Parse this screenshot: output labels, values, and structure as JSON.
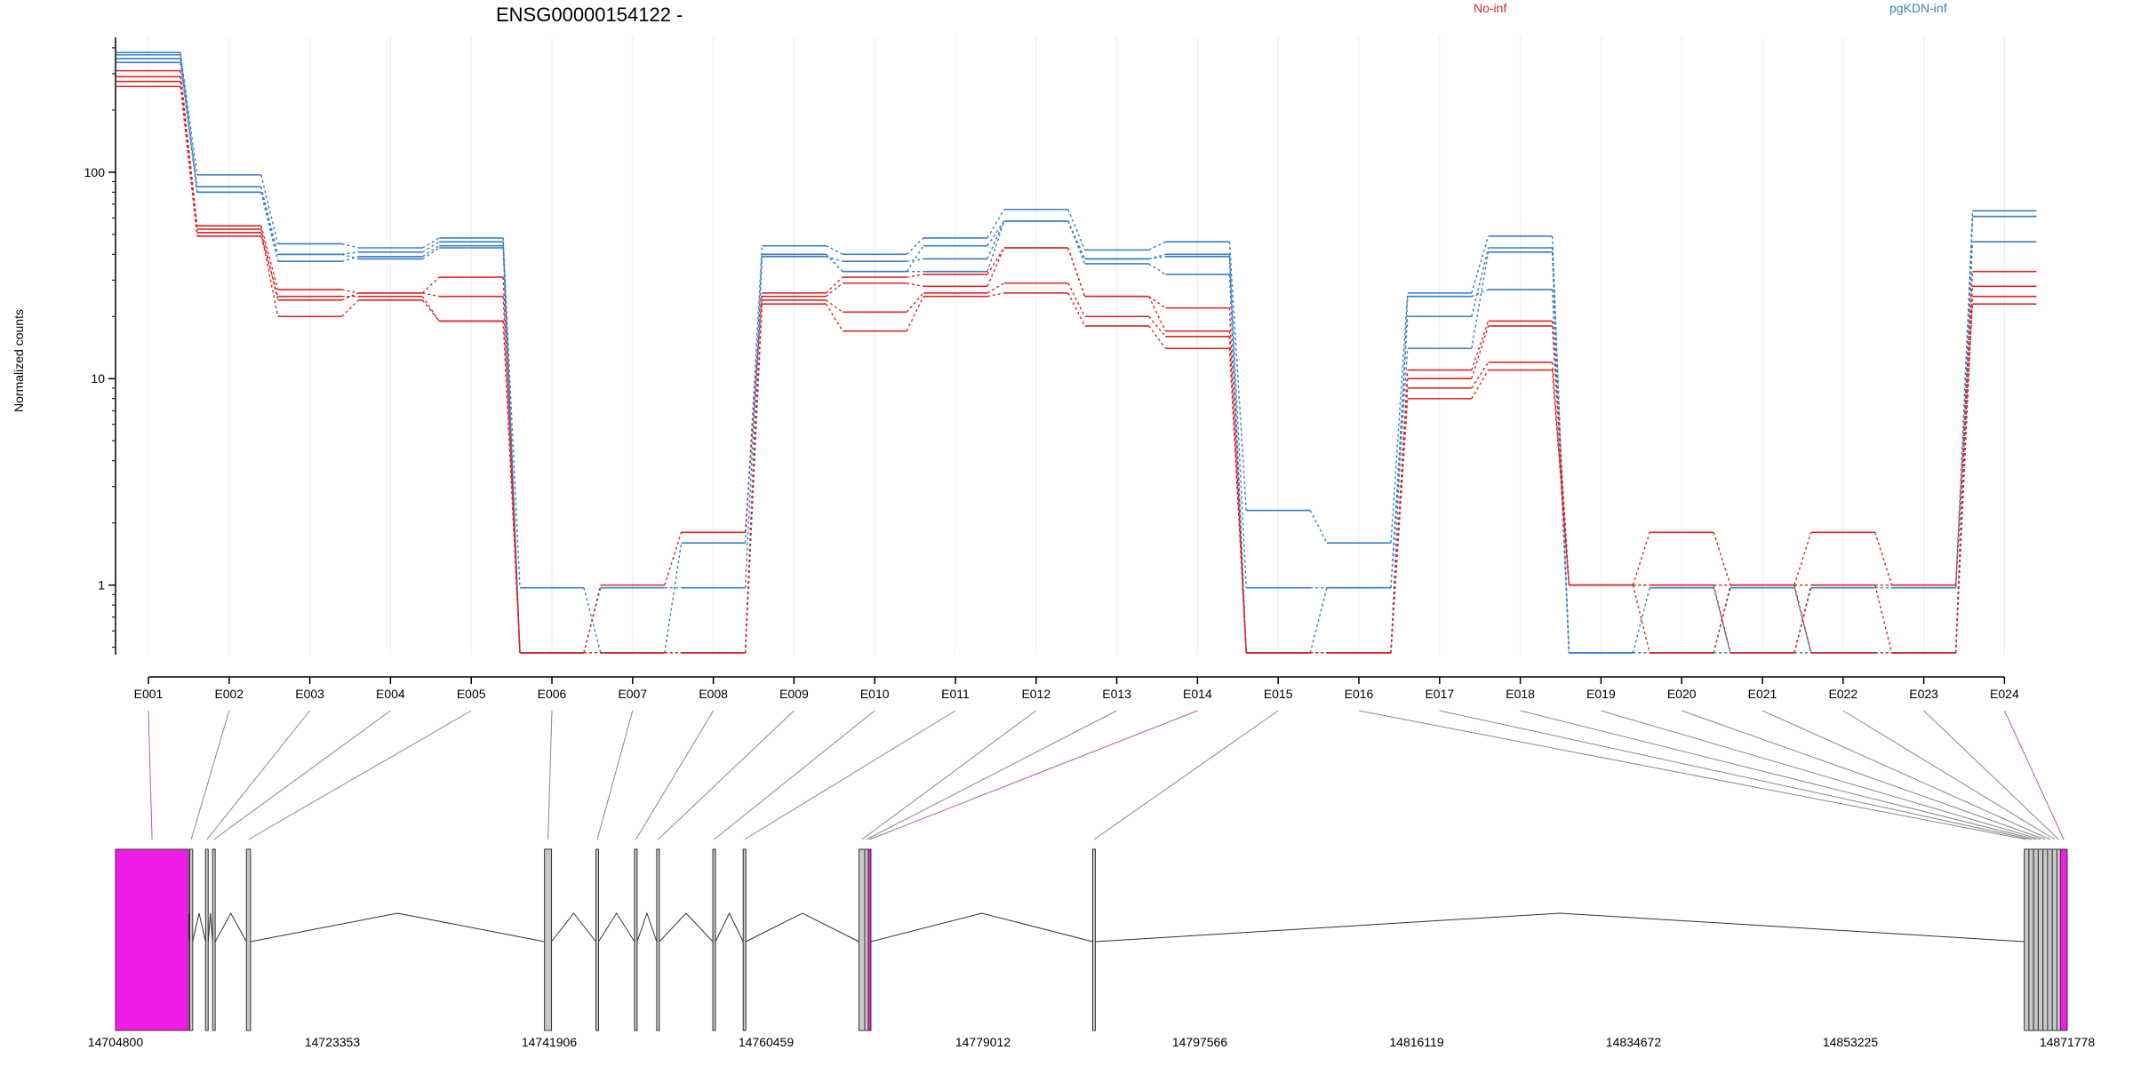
{
  "chart_data": {
    "type": "line",
    "title": "ENSG00000154122 -",
    "ylabel": "Normalized counts",
    "yscale": "log",
    "ylim": [
      0.46,
      450
    ],
    "yticks": [
      1,
      10,
      100
    ],
    "ytick_labels": [
      "1",
      "10",
      "100"
    ],
    "grid": "vertical per exon",
    "legend_position": "top-right",
    "categories": [
      "E001",
      "E002",
      "E003",
      "E004",
      "E005",
      "E006",
      "E007",
      "E008",
      "E009",
      "E010",
      "E011",
      "E012",
      "E013",
      "E014",
      "E015",
      "E016",
      "E017",
      "E018",
      "E019",
      "E020",
      "E021",
      "E022",
      "E023",
      "E024"
    ],
    "series": [
      {
        "name": "pgKDN-inf",
        "color": "#3a7fc4",
        "sample": 1,
        "values": [
          380,
          97,
          45,
          43,
          48,
          0.47,
          0.47,
          1.6,
          44,
          40,
          48,
          66,
          42,
          46,
          2.3,
          1.6,
          26,
          49,
          0.47,
          0.47,
          0.47,
          0.47,
          0.47,
          65
        ]
      },
      {
        "name": "pgKDN-inf",
        "color": "#3a7fc4",
        "sample": 2,
        "values": [
          370,
          85,
          40,
          41,
          46,
          0.97,
          0.47,
          0.47,
          40,
          33,
          44,
          58,
          38,
          39,
          0.97,
          0.97,
          20,
          43,
          0.47,
          0.97,
          0.47,
          0.97,
          0.97,
          61
        ]
      },
      {
        "name": "pgKDN-inf",
        "color": "#3a7fc4",
        "sample": 3,
        "values": [
          355,
          80,
          37,
          39,
          44,
          0.47,
          0.97,
          0.97,
          39,
          37,
          38,
          58,
          36,
          32,
          0.47,
          0.97,
          14,
          41,
          0.47,
          0.47,
          0.97,
          0.47,
          0.47,
          46
        ]
      },
      {
        "name": "pgKDN-inf",
        "color": "#3a7fc4",
        "sample": 4,
        "values": [
          340,
          80,
          40,
          38,
          43,
          0.47,
          0.47,
          0.47,
          40,
          33,
          33,
          58,
          38,
          40,
          0.47,
          0.47,
          25,
          27,
          0.47,
          0.47,
          0.47,
          0.47,
          0.47,
          61
        ]
      },
      {
        "name": "No-inf",
        "color": "#d62728",
        "sample": 1,
        "values": [
          310,
          55,
          27,
          26,
          31,
          0.47,
          1.0,
          1.8,
          26,
          31,
          32,
          43,
          25,
          22,
          0.47,
          0.47,
          11,
          19,
          1.0,
          1.8,
          1.0,
          1.8,
          1.0,
          33
        ]
      },
      {
        "name": "No-inf",
        "color": "#d62728",
        "sample": 2,
        "values": [
          290,
          53,
          24,
          26,
          25,
          0.47,
          0.47,
          0.47,
          25,
          29,
          28,
          43,
          25,
          17,
          0.47,
          0.47,
          10,
          18,
          1.0,
          1.0,
          1.0,
          1.0,
          0.47,
          28
        ]
      },
      {
        "name": "No-inf",
        "color": "#d62728",
        "sample": 3,
        "values": [
          275,
          51,
          20,
          24,
          19,
          0.47,
          0.47,
          0.47,
          24,
          21,
          26,
          29,
          20,
          16,
          0.47,
          0.47,
          9,
          12,
          1.0,
          0.47,
          1.0,
          0.47,
          0.47,
          25
        ]
      },
      {
        "name": "No-inf",
        "color": "#d62728",
        "sample": 4,
        "values": [
          260,
          49,
          25,
          25,
          19,
          0.47,
          0.47,
          0.47,
          23,
          17,
          25,
          26,
          18,
          14,
          0.47,
          0.47,
          8,
          11,
          1.0,
          1.0,
          0.47,
          1.0,
          1.0,
          23
        ]
      }
    ],
    "legend": [
      {
        "label": "No-inf",
        "color": "#d62728"
      },
      {
        "label": "pgKDN-inf",
        "color": "#3a7fc4"
      }
    ],
    "gene_model": {
      "coord_range": [
        14704800,
        14871778
      ],
      "coord_ticks": [
        14704800,
        14723353,
        14741906,
        14760459,
        14779012,
        14797566,
        14816119,
        14834672,
        14853225,
        14871778
      ],
      "coord_labels": [
        "14704800",
        "14723353",
        "14741906",
        "14760459",
        "14779012",
        "14797566",
        "14816119",
        "14834672",
        "14853225",
        "14871778"
      ],
      "highlight_color": "#f01de6",
      "exons": [
        {
          "id": "E001",
          "start": 14704800,
          "end": 14711050,
          "highlight": true
        },
        {
          "id": "E002",
          "start": 14711150,
          "end": 14711400,
          "highlight": false
        },
        {
          "id": "E003",
          "start": 14712500,
          "end": 14712700,
          "highlight": false
        },
        {
          "id": "E004",
          "start": 14713100,
          "end": 14713300,
          "highlight": false
        },
        {
          "id": "E005",
          "start": 14716000,
          "end": 14716350,
          "highlight": false
        },
        {
          "id": "E006",
          "start": 14741500,
          "end": 14742100,
          "highlight": false
        },
        {
          "id": "E007",
          "start": 14745900,
          "end": 14746100,
          "highlight": false
        },
        {
          "id": "E008",
          "start": 14749200,
          "end": 14749400,
          "highlight": false
        },
        {
          "id": "E009",
          "start": 14751100,
          "end": 14751300,
          "highlight": false
        },
        {
          "id": "E010",
          "start": 14755900,
          "end": 14756100,
          "highlight": false
        },
        {
          "id": "E011",
          "start": 14758500,
          "end": 14758700,
          "highlight": false
        },
        {
          "id": "E012",
          "start": 14768400,
          "end": 14768900,
          "highlight": false
        },
        {
          "id": "E013",
          "start": 14768900,
          "end": 14769200,
          "highlight": false
        },
        {
          "id": "E014",
          "start": 14769200,
          "end": 14769400,
          "highlight": true
        },
        {
          "id": "E015",
          "start": 14788400,
          "end": 14788600,
          "highlight": false
        },
        {
          "id": "E016",
          "start": 14868100,
          "end": 14868500,
          "highlight": false
        },
        {
          "id": "E017",
          "start": 14868500,
          "end": 14868900,
          "highlight": false
        },
        {
          "id": "E018",
          "start": 14868900,
          "end": 14869300,
          "highlight": false
        },
        {
          "id": "E019",
          "start": 14869300,
          "end": 14869700,
          "highlight": false
        },
        {
          "id": "E020",
          "start": 14869700,
          "end": 14870100,
          "highlight": false
        },
        {
          "id": "E021",
          "start": 14870100,
          "end": 14870500,
          "highlight": false
        },
        {
          "id": "E022",
          "start": 14870500,
          "end": 14870900,
          "highlight": false
        },
        {
          "id": "E023",
          "start": 14870900,
          "end": 14871200,
          "highlight": false
        },
        {
          "id": "E024",
          "start": 14871200,
          "end": 14871778,
          "highlight": true
        }
      ]
    }
  }
}
